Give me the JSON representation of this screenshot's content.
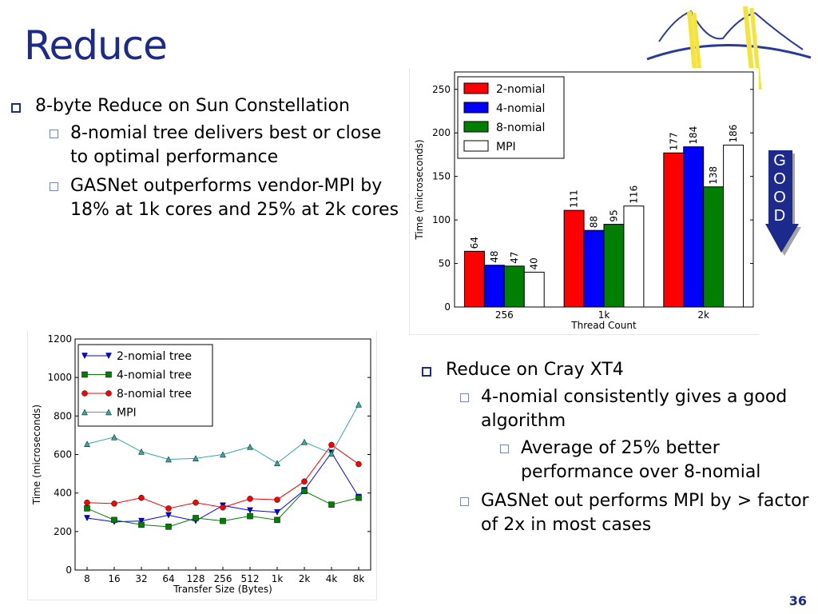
{
  "slide": {
    "title": "Reduce",
    "page_number": "36",
    "good_arrow": [
      "G",
      "O",
      "O",
      "D"
    ]
  },
  "left_text": {
    "item": "8-byte Reduce on Sun Constellation",
    "subitems": [
      "8-nomial tree delivers best or close to optimal performance",
      "GASNet outperforms vendor-MPI by 18% at 1k cores and 25% at 2k cores"
    ]
  },
  "right_text": {
    "item": "Reduce on Cray XT4",
    "subitems": [
      "4-nomial consistently gives a good algorithm",
      "GASNet out performs MPI by > factor of 2x in most cases"
    ],
    "subsubitem": "Average of 25% better performance over 8-nomial"
  },
  "chart_data": [
    {
      "type": "bar",
      "title": "",
      "xlabel": "Thread Count",
      "ylabel": "Time (microseconds)",
      "categories": [
        "256",
        "1k",
        "2k"
      ],
      "ylim": [
        0,
        270
      ],
      "yticks": [
        0,
        50,
        100,
        150,
        200,
        250
      ],
      "legend_position": "top-left",
      "grid": false,
      "series": [
        {
          "name": "2-nomial",
          "color": "#ff0000",
          "values": [
            64,
            111,
            177
          ]
        },
        {
          "name": "4-nomial",
          "color": "#0000ff",
          "values": [
            48,
            88,
            184
          ]
        },
        {
          "name": "8-nomial",
          "color": "#007f00",
          "values": [
            47,
            95,
            138
          ]
        },
        {
          "name": "MPI",
          "color": "#ffffff",
          "values": [
            40,
            116,
            186
          ]
        }
      ]
    },
    {
      "type": "line",
      "title": "",
      "xlabel": "Transfer Size (Bytes)",
      "ylabel": "Time (microseconds)",
      "categories": [
        "8",
        "16",
        "32",
        "64",
        "128",
        "256",
        "512",
        "1k",
        "2k",
        "4k",
        "8k"
      ],
      "ylim": [
        0,
        1200
      ],
      "yticks": [
        0,
        200,
        400,
        600,
        800,
        1000,
        1200
      ],
      "legend_position": "top-left",
      "grid": false,
      "series": [
        {
          "name": "2-nomial tree",
          "color": "#0000ff",
          "marker": "triangle-down",
          "values": [
            270,
            250,
            255,
            285,
            255,
            335,
            310,
            300,
            415,
            610,
            380
          ]
        },
        {
          "name": "4-nomial tree",
          "color": "#007f00",
          "marker": "square",
          "values": [
            320,
            260,
            235,
            225,
            270,
            255,
            280,
            260,
            410,
            340,
            375
          ]
        },
        {
          "name": "8-nomial tree",
          "color": "#ff0000",
          "marker": "circle",
          "values": [
            350,
            345,
            375,
            320,
            350,
            325,
            370,
            365,
            460,
            650,
            550
          ]
        },
        {
          "name": "MPI",
          "color": "#33a9a9",
          "marker": "triangle-up",
          "values": [
            655,
            690,
            615,
            575,
            580,
            600,
            640,
            555,
            665,
            605,
            860
          ]
        }
      ]
    }
  ]
}
